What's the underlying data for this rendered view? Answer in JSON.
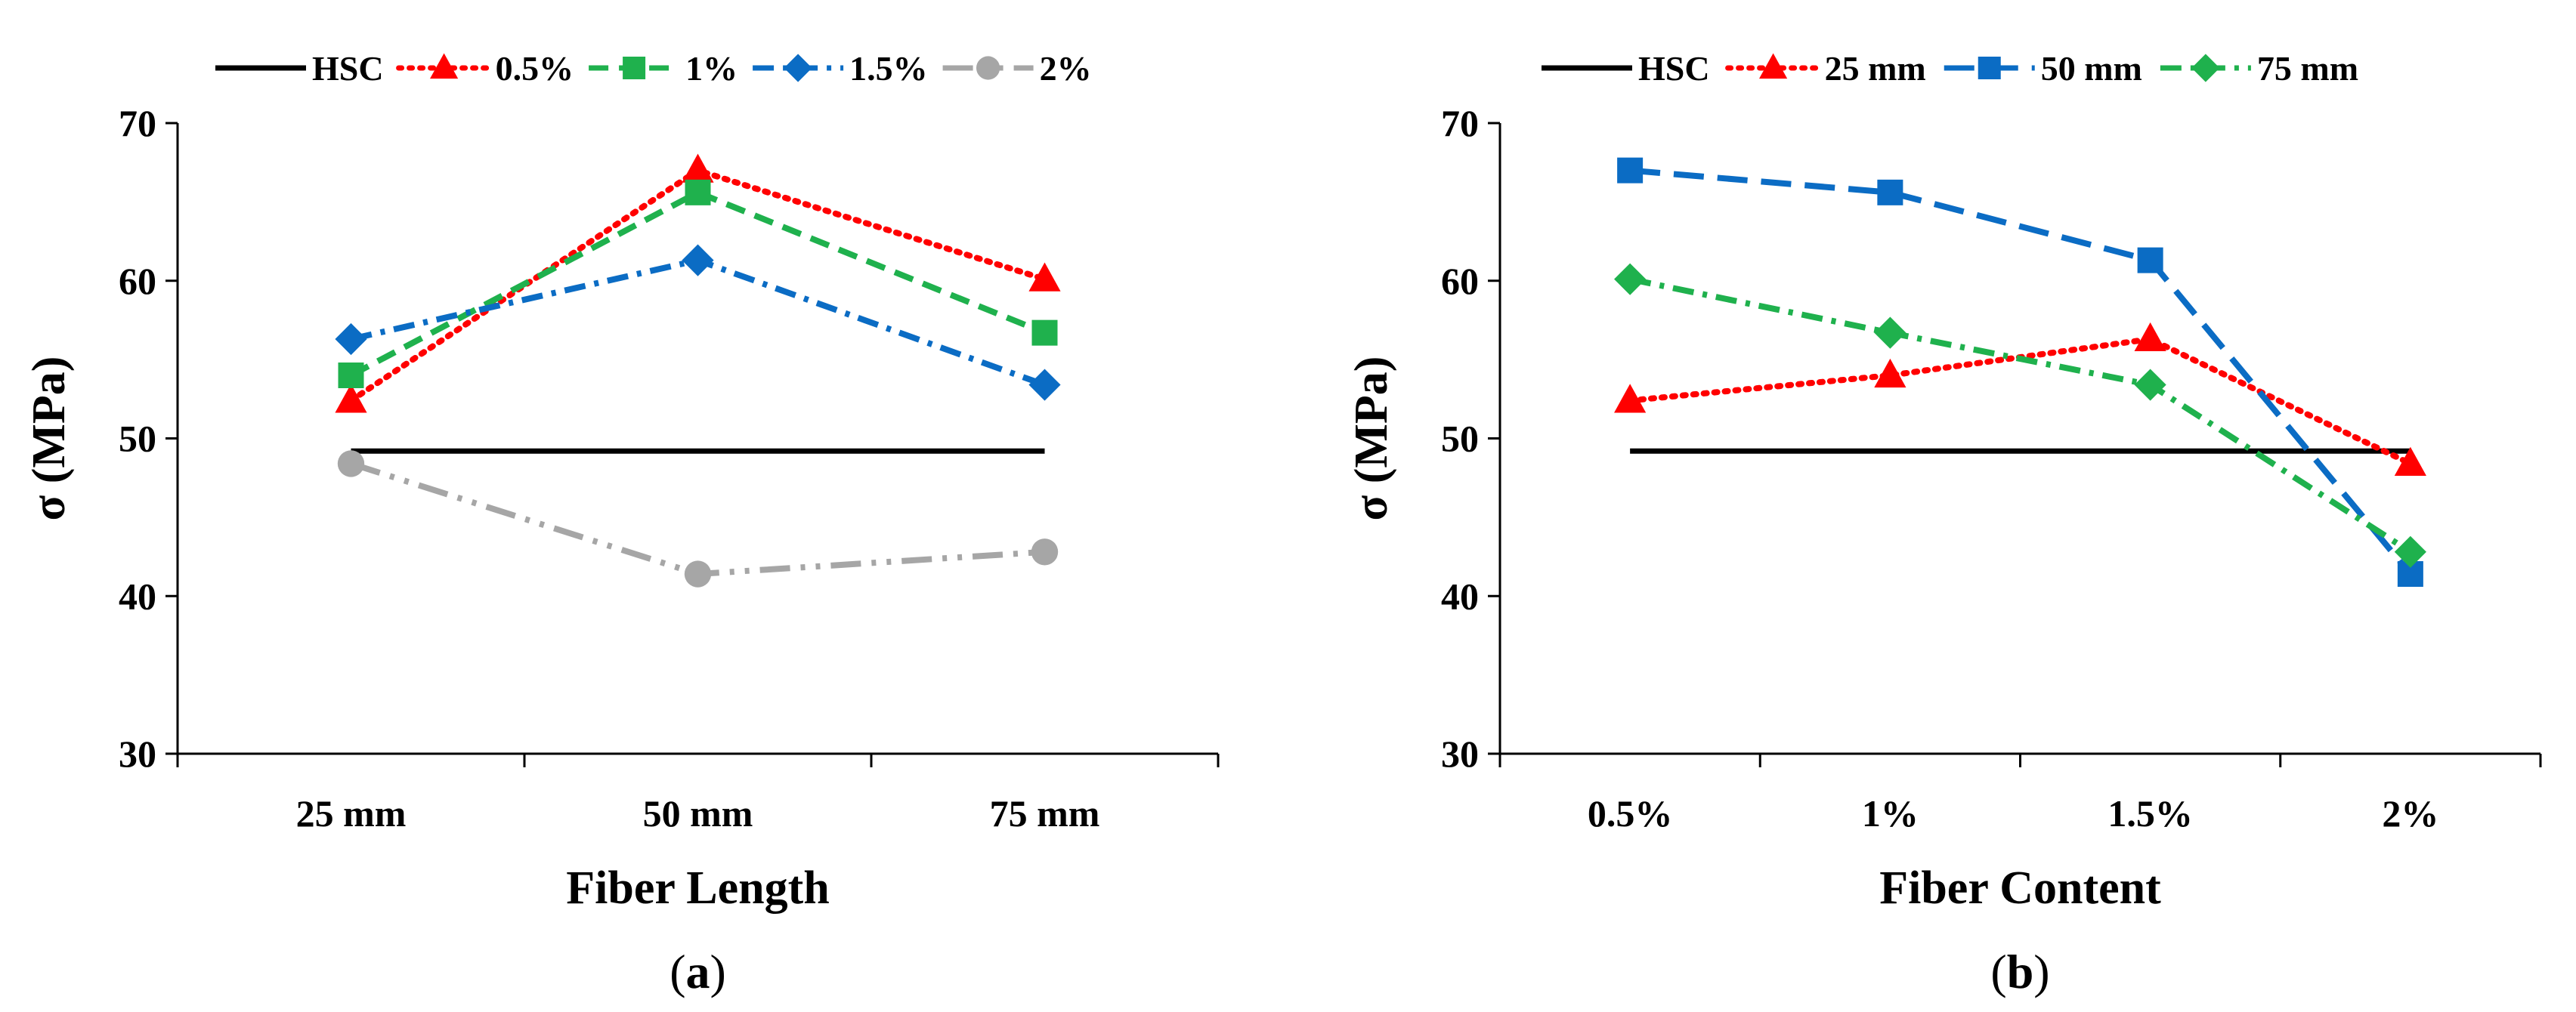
{
  "colors": {
    "HSC": "#000000",
    "red": "#ff0000",
    "green": "#1fb14d",
    "blue": "#0b6cc4",
    "gray": "#a6a6a6"
  },
  "chart_data": [
    {
      "panel_label": "a",
      "type": "line",
      "title": "",
      "xlabel": "Fiber Length",
      "ylabel": "σ (MPa)",
      "ylim": [
        30,
        70
      ],
      "yticks": [
        "30",
        "40",
        "50",
        "60",
        "70"
      ],
      "categories": [
        "25 mm",
        "50 mm",
        "75 mm"
      ],
      "legend_position": "top",
      "series": [
        {
          "name": "HSC",
          "values": [
            49.2,
            49.2,
            49.2
          ],
          "color": "#000000",
          "dash": "solid",
          "marker": "none",
          "hsc": true
        },
        {
          "name": "0.5%",
          "values": [
            52.4,
            67.0,
            60.1
          ],
          "color": "#ff0000",
          "dash": "dot",
          "marker": "triangle"
        },
        {
          "name": "1%",
          "values": [
            54.0,
            65.6,
            56.7
          ],
          "color": "#1fb14d",
          "dash": "dash",
          "marker": "square"
        },
        {
          "name": "1.5%",
          "values": [
            56.3,
            61.3,
            53.4
          ],
          "color": "#0b6cc4",
          "dash": "dashdot",
          "marker": "diamond"
        },
        {
          "name": "2%",
          "values": [
            48.4,
            41.4,
            42.8
          ],
          "color": "#a6a6a6",
          "dash": "longdashdotdot",
          "marker": "circle"
        }
      ]
    },
    {
      "panel_label": "b",
      "type": "line",
      "title": "",
      "xlabel": "Fiber Content",
      "ylabel": "σ (MPa)",
      "ylim": [
        30,
        70
      ],
      "yticks": [
        "30",
        "40",
        "50",
        "60",
        "70"
      ],
      "categories": [
        "0.5%",
        "1%",
        "1.5%",
        "2%"
      ],
      "legend_position": "top",
      "series": [
        {
          "name": "HSC",
          "values": [
            49.2,
            49.2,
            49.2,
            49.2
          ],
          "color": "#000000",
          "dash": "solid",
          "marker": "none",
          "hsc": true
        },
        {
          "name": "25 mm",
          "values": [
            52.4,
            54.0,
            56.3,
            48.4
          ],
          "color": "#ff0000",
          "dash": "dot",
          "marker": "triangle"
        },
        {
          "name": "50 mm",
          "values": [
            67.0,
            65.6,
            61.3,
            41.4
          ],
          "color": "#0b6cc4",
          "dash": "longdash",
          "marker": "square"
        },
        {
          "name": "75 mm",
          "values": [
            60.1,
            56.7,
            53.4,
            42.8
          ],
          "color": "#1fb14d",
          "dash": "dashdot",
          "marker": "diamond"
        }
      ]
    }
  ]
}
